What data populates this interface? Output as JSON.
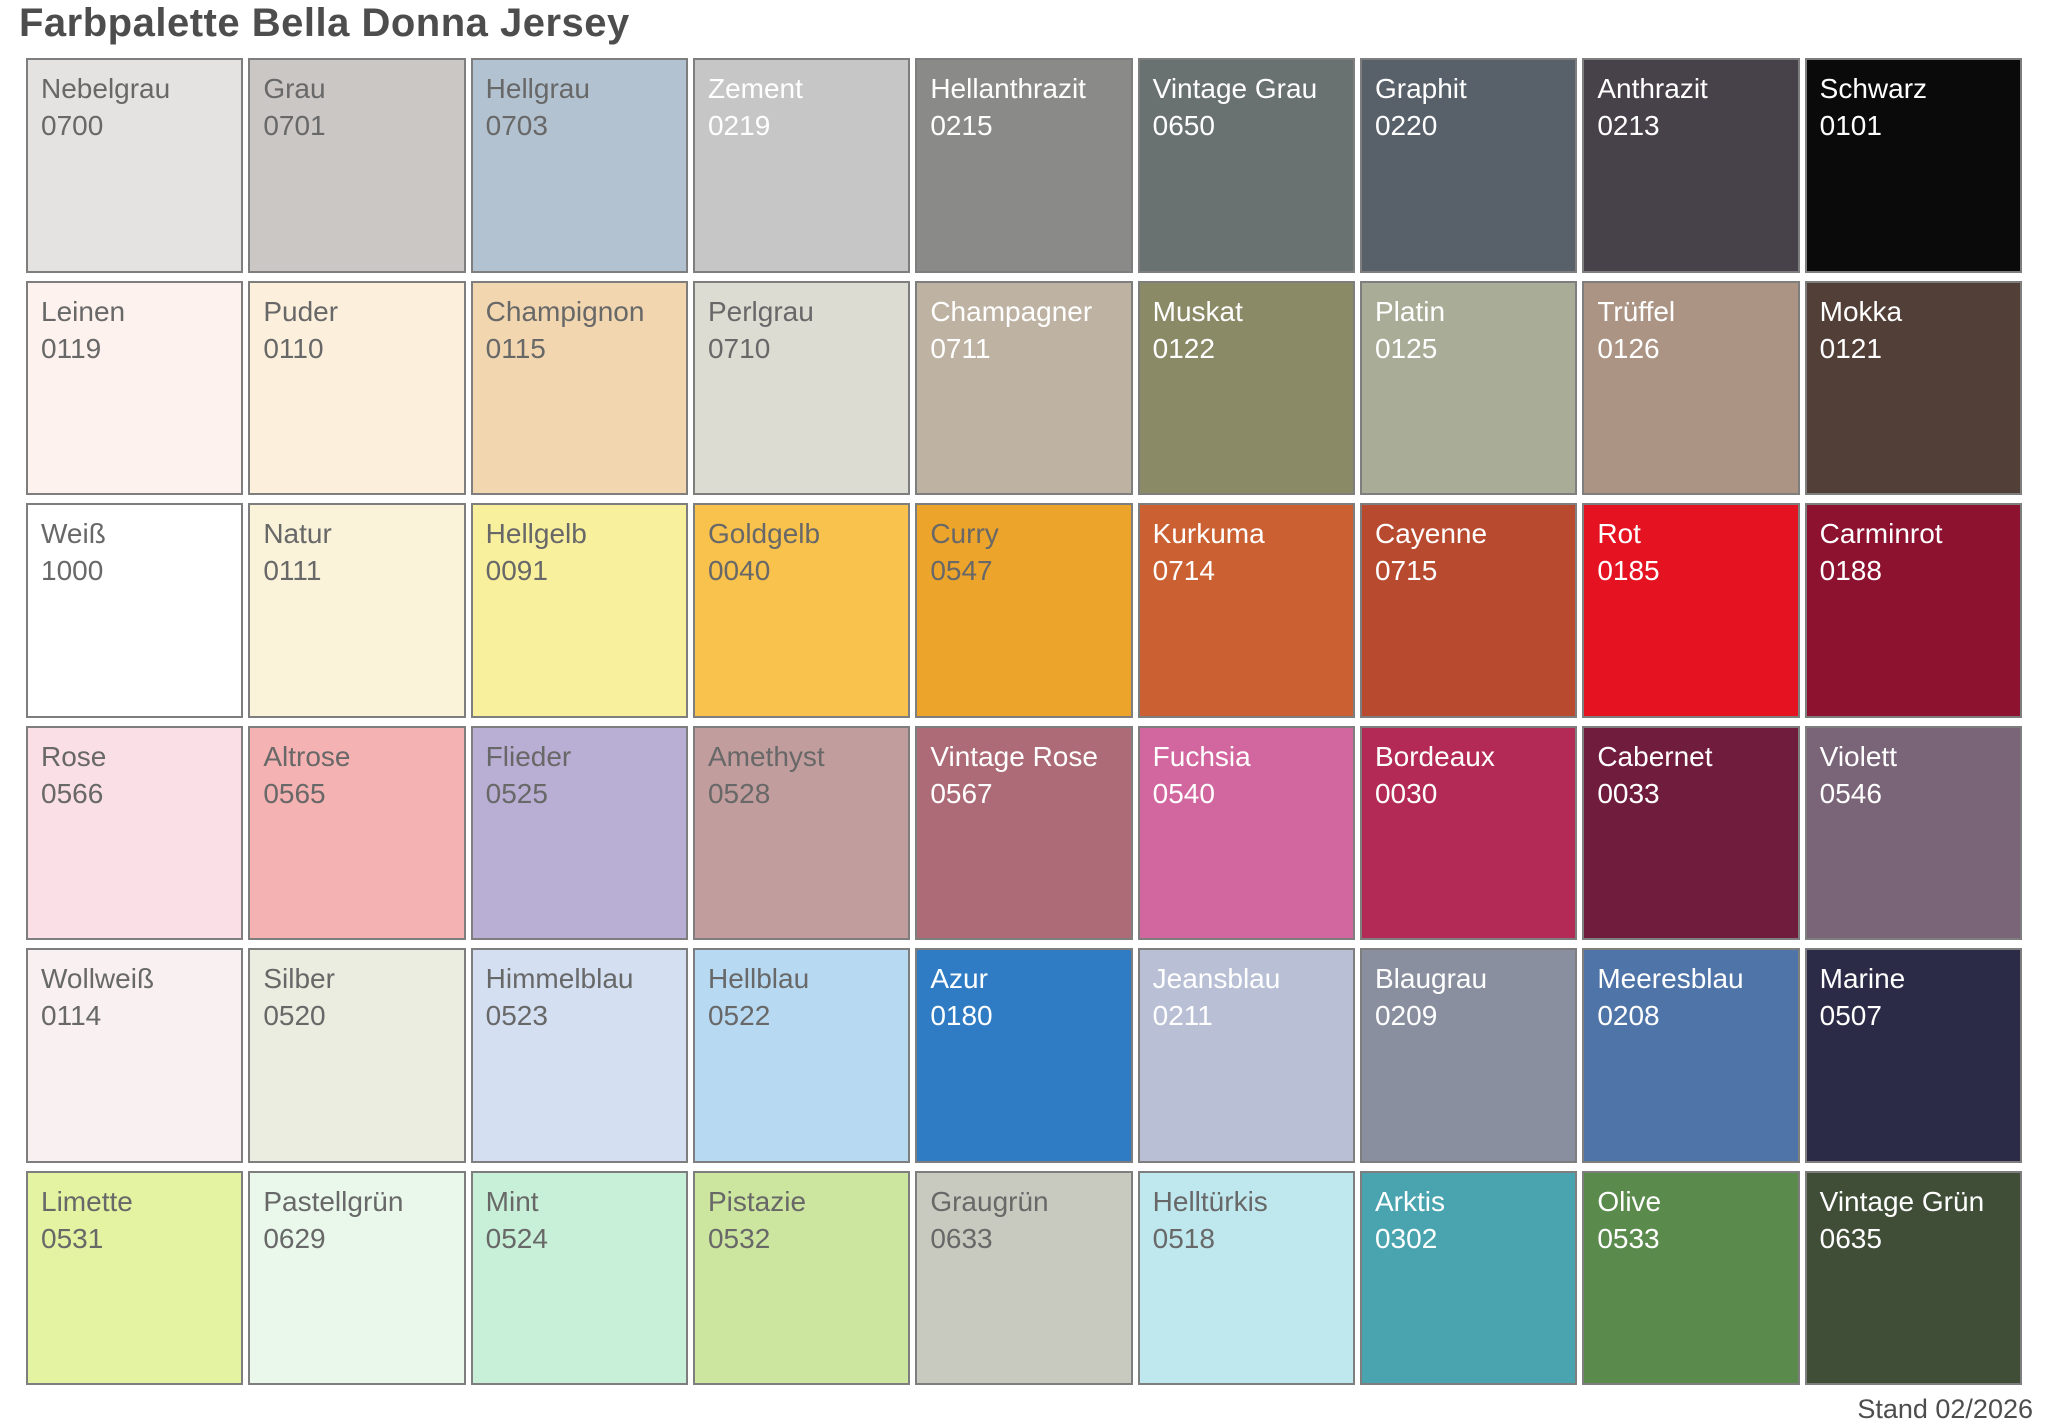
{
  "title": "Farbpalette Bella Donna Jersey",
  "footer": {
    "label": "Stand 02/2026"
  },
  "palette": {
    "grid_columns": 9,
    "grid_rows": 6,
    "swatches": [
      {
        "name": "Nebelgrau",
        "code": "0700",
        "color_hex": "#e4e3e1",
        "text_style": "dark"
      },
      {
        "name": "Grau",
        "code": "0701",
        "color_hex": "#cac7c4",
        "text_style": "dark"
      },
      {
        "name": "Hellgrau",
        "code": "0703",
        "color_hex": "#b2c2d0",
        "text_style": "dark"
      },
      {
        "name": "Zement",
        "code": "0219",
        "color_hex": "#c5c6c5",
        "text_style": "light"
      },
      {
        "name": "Hellanthrazit",
        "code": "0215",
        "color_hex": "#8a8a89",
        "text_style": "light"
      },
      {
        "name": "Vintage Grau",
        "code": "0650",
        "color_hex": "#697270",
        "text_style": "light"
      },
      {
        "name": "Graphit",
        "code": "0220",
        "color_hex": "#586069",
        "text_style": "light"
      },
      {
        "name": "Anthrazit",
        "code": "0213",
        "color_hex": "#474149",
        "text_style": "light"
      },
      {
        "name": "Schwarz",
        "code": "0101",
        "color_hex": "#0a0a0a",
        "text_style": "light"
      },
      {
        "name": "Leinen",
        "code": "0119",
        "color_hex": "#fdf2ed",
        "text_style": "dark"
      },
      {
        "name": "Puder",
        "code": "0110",
        "color_hex": "#fcf0dc",
        "text_style": "dark"
      },
      {
        "name": "Champignon",
        "code": "0115",
        "color_hex": "#f1d6af",
        "text_style": "dark"
      },
      {
        "name": "Perlgrau",
        "code": "0710",
        "color_hex": "#dcdcd3",
        "text_style": "dark"
      },
      {
        "name": "Champagner",
        "code": "0711",
        "color_hex": "#beb2a2",
        "text_style": "light"
      },
      {
        "name": "Muskat",
        "code": "0122",
        "color_hex": "#8b8a67",
        "text_style": "light"
      },
      {
        "name": "Platin",
        "code": "0125",
        "color_hex": "#a9ac97",
        "text_style": "light"
      },
      {
        "name": "Trüffel",
        "code": "0126",
        "color_hex": "#ab9483",
        "text_style": "light"
      },
      {
        "name": "Mokka",
        "code": "0121",
        "color_hex": "#523f38",
        "text_style": "light"
      },
      {
        "name": "Weiß",
        "code": "1000",
        "color_hex": "#ffffff",
        "text_style": "dark"
      },
      {
        "name": "Natur",
        "code": "0111",
        "color_hex": "#faf3d9",
        "text_style": "dark"
      },
      {
        "name": "Hellgelb",
        "code": "0091",
        "color_hex": "#f9f09e",
        "text_style": "dark"
      },
      {
        "name": "Goldgelb",
        "code": "0040",
        "color_hex": "#f8c24d",
        "text_style": "dark"
      },
      {
        "name": "Curry",
        "code": "0547",
        "color_hex": "#eda42b",
        "text_style": "dark"
      },
      {
        "name": "Kurkuma",
        "code": "0714",
        "color_hex": "#cb6132",
        "text_style": "light"
      },
      {
        "name": "Cayenne",
        "code": "0715",
        "color_hex": "#b84a30",
        "text_style": "light"
      },
      {
        "name": "Rot",
        "code": "0185",
        "color_hex": "#e51222",
        "text_style": "light"
      },
      {
        "name": "Carminrot",
        "code": "0188",
        "color_hex": "#8c1230",
        "text_style": "light"
      },
      {
        "name": "Rose",
        "code": "0566",
        "color_hex": "#fbdfe6",
        "text_style": "dark"
      },
      {
        "name": "Altrose",
        "code": "0565",
        "color_hex": "#f5b2b2",
        "text_style": "dark"
      },
      {
        "name": "Flieder",
        "code": "0525",
        "color_hex": "#b9aed3",
        "text_style": "dark"
      },
      {
        "name": "Amethyst",
        "code": "0528",
        "color_hex": "#c29d9d",
        "text_style": "dark"
      },
      {
        "name": "Vintage Rose",
        "code": "0567",
        "color_hex": "#ad6b77",
        "text_style": "light"
      },
      {
        "name": "Fuchsia",
        "code": "0540",
        "color_hex": "#d2679f",
        "text_style": "light"
      },
      {
        "name": "Bordeaux",
        "code": "0030",
        "color_hex": "#b22a55",
        "text_style": "light"
      },
      {
        "name": "Cabernet",
        "code": "0033",
        "color_hex": "#701c3c",
        "text_style": "light"
      },
      {
        "name": "Violett",
        "code": "0546",
        "color_hex": "#7a6478",
        "text_style": "light"
      },
      {
        "name": "Wollweiß",
        "code": "0114",
        "color_hex": "#f9f1f1",
        "text_style": "dark"
      },
      {
        "name": "Silber",
        "code": "0520",
        "color_hex": "#ebede0",
        "text_style": "dark"
      },
      {
        "name": "Himmelblau",
        "code": "0523",
        "color_hex": "#d4e0f2",
        "text_style": "dark"
      },
      {
        "name": "Hellblau",
        "code": "0522",
        "color_hex": "#b8d9f2",
        "text_style": "dark"
      },
      {
        "name": "Azur",
        "code": "0180",
        "color_hex": "#2f7cc4",
        "text_style": "light"
      },
      {
        "name": "Jeansblau",
        "code": "0211",
        "color_hex": "#b9c0d6",
        "text_style": "light"
      },
      {
        "name": "Blaugrau",
        "code": "0209",
        "color_hex": "#8a8f9f",
        "text_style": "light"
      },
      {
        "name": "Meeresblau",
        "code": "0208",
        "color_hex": "#4f74a8",
        "text_style": "light"
      },
      {
        "name": "Marine",
        "code": "0507",
        "color_hex": "#2b2b47",
        "text_style": "light"
      },
      {
        "name": "Limette",
        "code": "0531",
        "color_hex": "#e3f3a2",
        "text_style": "dark"
      },
      {
        "name": "Pastellgrün",
        "code": "0629",
        "color_hex": "#eaf8ec",
        "text_style": "dark"
      },
      {
        "name": "Mint",
        "code": "0524",
        "color_hex": "#c8f0d8",
        "text_style": "dark"
      },
      {
        "name": "Pistazie",
        "code": "0532",
        "color_hex": "#cde69f",
        "text_style": "dark"
      },
      {
        "name": "Graugrün",
        "code": "0633",
        "color_hex": "#c9cabf",
        "text_style": "dark"
      },
      {
        "name": "Helltürkis",
        "code": "0518",
        "color_hex": "#bfe7ee",
        "text_style": "dark"
      },
      {
        "name": "Arktis",
        "code": "0302",
        "color_hex": "#4aa4b0",
        "text_style": "light"
      },
      {
        "name": "Olive",
        "code": "0533",
        "color_hex": "#5b8a4d",
        "text_style": "light"
      },
      {
        "name": "Vintage Grün",
        "code": "0635",
        "color_hex": "#404e38",
        "text_style": "light"
      }
    ]
  }
}
